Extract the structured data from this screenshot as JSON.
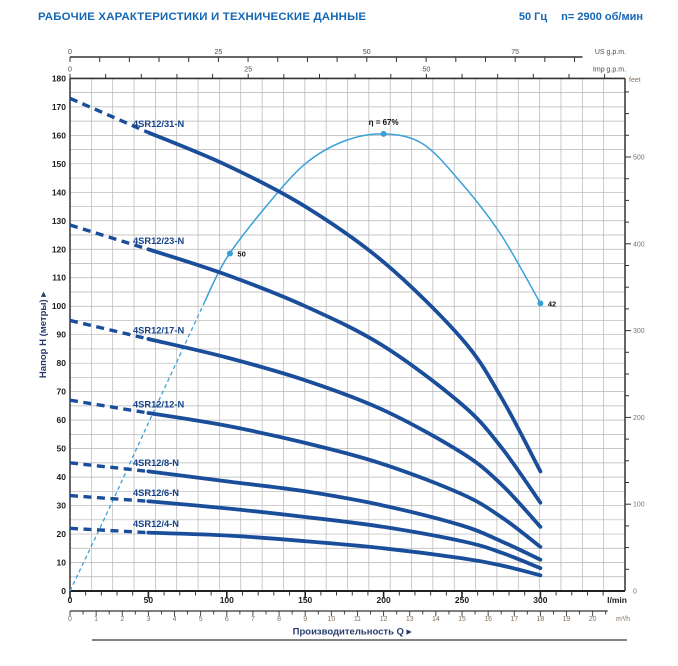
{
  "header": {
    "title": "РАБОЧИЕ ХАРАКТЕРИСТИКИ И ТЕХНИЧЕСКИЕ ДАННЫЕ",
    "frequency": "50 Гц",
    "speed": "n= 2900 об/мин"
  },
  "chart_data": {
    "type": "line",
    "xlabel": "Производительность Q  ▸",
    "ylabel": "Напор H (метры)  ▸",
    "axes": {
      "flow_lmin": {
        "unit": "l/min",
        "major_ticks": [
          0,
          50,
          100,
          150,
          200,
          250,
          300
        ],
        "minor_step": 10,
        "minor_max": 340
      },
      "flow_m3h": {
        "unit": "m³/h",
        "major_ticks": [
          0,
          1,
          2,
          3,
          4,
          5,
          6,
          7,
          8,
          9,
          10,
          11,
          12,
          13,
          14,
          15,
          16,
          17,
          18,
          19,
          20
        ],
        "minor_step": 0.5,
        "minor_max": 20.5
      },
      "flow_usgpm": {
        "unit": "US g.p.m.",
        "labeled_ticks": [
          0,
          25,
          50,
          75
        ],
        "minor_step": 5,
        "minor_max": 85
      },
      "flow_impgpm": {
        "unit": "Imp g.p.m.",
        "labeled_ticks": [
          0,
          25,
          50
        ],
        "minor_step": 5,
        "minor_max": 75
      },
      "head_m": {
        "unit": "метры",
        "min": 0,
        "max": 180,
        "label_step": 10,
        "grid_step": 5
      },
      "head_feet": {
        "unit": "feet",
        "labeled_ticks": [
          100,
          200,
          300,
          400,
          500
        ],
        "zero_label": "0",
        "minor_step": 25,
        "minor_max": 575
      }
    },
    "pump_curves": [
      {
        "label": "4SR12/31-N",
        "dashed_until_q": 50,
        "q_lmin": [
          0,
          50,
          100,
          150,
          200,
          250,
          275,
          300
        ],
        "head_m": [
          173,
          161,
          149.5,
          135,
          115.5,
          88.5,
          68,
          42
        ]
      },
      {
        "label": "4SR12/23-N",
        "dashed_until_q": 50,
        "q_lmin": [
          0,
          50,
          100,
          150,
          200,
          250,
          275,
          300
        ],
        "head_m": [
          128.5,
          120,
          111,
          100,
          86,
          65.5,
          50.5,
          31
        ]
      },
      {
        "label": "4SR12/17-N",
        "dashed_until_q": 50,
        "q_lmin": [
          0,
          50,
          100,
          150,
          200,
          250,
          275,
          300
        ],
        "head_m": [
          95,
          88.5,
          82,
          74,
          63.5,
          48.5,
          37.5,
          22.5
        ]
      },
      {
        "label": "4SR12/12-N",
        "dashed_until_q": 50,
        "q_lmin": [
          0,
          50,
          100,
          150,
          200,
          250,
          275,
          300
        ],
        "head_m": [
          67,
          62.5,
          58,
          52,
          44.5,
          34,
          26,
          15.5
        ]
      },
      {
        "label": "4SR12/8-N",
        "dashed_until_q": 50,
        "q_lmin": [
          0,
          50,
          100,
          150,
          200,
          250,
          275,
          300
        ],
        "head_m": [
          45,
          42,
          38.5,
          35,
          30,
          23,
          17.5,
          11
        ]
      },
      {
        "label": "4SR12/6-N",
        "dashed_until_q": 50,
        "q_lmin": [
          0,
          50,
          100,
          150,
          200,
          250,
          275,
          300
        ],
        "head_m": [
          33.5,
          31.5,
          29,
          26,
          22.5,
          17.5,
          13.5,
          8
        ]
      },
      {
        "label": "4SR12/4-N",
        "dashed_until_q": 50,
        "q_lmin": [
          0,
          50,
          100,
          150,
          200,
          250,
          275,
          300
        ],
        "head_m": [
          22,
          20.5,
          19.5,
          17.5,
          15,
          11.5,
          9,
          5.5
        ]
      }
    ],
    "efficiency_curve": {
      "name": "η",
      "dashed_until_q": 85,
      "q_lmin": [
        0,
        25,
        50,
        85,
        100,
        125,
        150,
        175,
        200,
        225,
        250,
        275,
        300
      ],
      "head_scale": [
        0,
        29,
        59,
        100.5,
        117,
        135,
        150,
        158,
        160.5,
        157,
        143,
        125,
        101
      ],
      "markers": [
        {
          "q_lmin": 102,
          "head_scale": 118.5,
          "label": "50",
          "label_pos": "right"
        },
        {
          "q_lmin": 200,
          "head_scale": 160.5,
          "label": "η = 67%",
          "label_pos": "top"
        },
        {
          "q_lmin": 300,
          "head_scale": 101,
          "label": "42",
          "label_pos": "right"
        }
      ]
    },
    "colors": {
      "pump_curve": "#1b4e9a",
      "efficiency_curve": "#3aa1d8",
      "grid": "#b5b5b5",
      "axis": "#333333",
      "primary_tick_label": "#1c1c1c",
      "secondary_tick_label": "#83715f",
      "gpm_tick_label": "#4a4a4a",
      "curve_label": "#14418a",
      "marker_label": "#111111",
      "header_text": "#1567b3",
      "axis_title": "#263c6d"
    },
    "grid": true,
    "legend_position": "inline-curve-labels"
  }
}
